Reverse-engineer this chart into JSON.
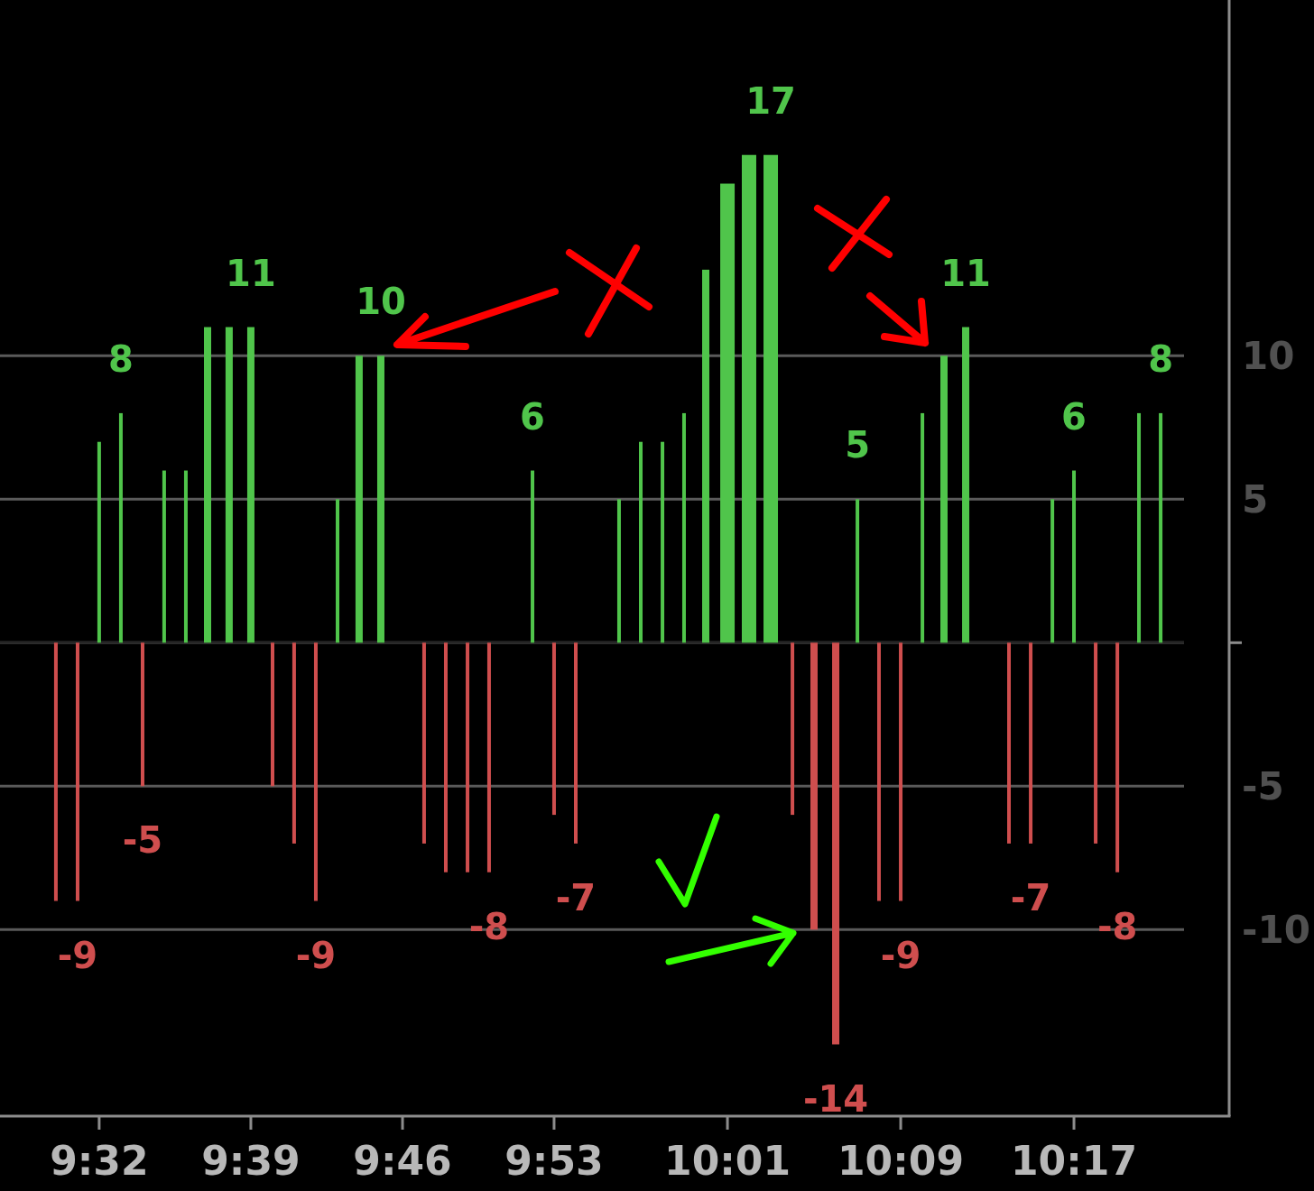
{
  "chart_data": {
    "type": "bar",
    "xlim": [
      9.457,
      10.368
    ],
    "xticks": [
      {
        "value": 9.5333,
        "label": "9:32"
      },
      {
        "value": 9.65,
        "label": "9:39"
      },
      {
        "value": 9.7667,
        "label": "9:46"
      },
      {
        "value": 9.8833,
        "label": "9:53"
      },
      {
        "value": 10.0167,
        "label": "10:01"
      },
      {
        "value": 10.15,
        "label": "10:09"
      },
      {
        "value": 10.2833,
        "label": "10:17"
      }
    ],
    "ylim": [
      -16.5,
      22.4
    ],
    "yticks": [
      -10,
      -5,
      {
        "value": 0,
        "label": null
      },
      5,
      10
    ],
    "grid": "y",
    "series": [
      {
        "color": "#50c54b",
        "x": [
          9.5333,
          9.55,
          9.5833,
          9.6,
          9.6167,
          9.6333,
          9.65,
          9.7167,
          9.7333,
          9.75,
          9.8667,
          9.9333,
          9.95,
          9.9667,
          9.9833,
          10.0,
          10.0167,
          10.0333,
          10.05,
          10.1167,
          10.1667,
          10.1833,
          10.2,
          10.2667,
          10.2833,
          10.3333,
          10.35
        ],
        "values": [
          7,
          8,
          6,
          6,
          11,
          11,
          11,
          5,
          10,
          10,
          6,
          5,
          7,
          7,
          8,
          13,
          16,
          17,
          17,
          5,
          8,
          10,
          11,
          5,
          6,
          8,
          8
        ],
        "value_labels": [
          null,
          "8",
          null,
          null,
          null,
          null,
          "11",
          null,
          null,
          "10",
          "6",
          null,
          null,
          null,
          null,
          null,
          null,
          null,
          "17",
          "5",
          null,
          null,
          "11",
          null,
          "6",
          null,
          "8"
        ]
      },
      {
        "color": "#cf4e4e",
        "x": [
          9.5,
          9.5167,
          9.5667,
          9.6667,
          9.6833,
          9.7,
          9.7833,
          9.8,
          9.8167,
          9.8333,
          9.8833,
          9.9,
          10.0667,
          10.0833,
          10.1,
          10.1333,
          10.15,
          10.2333,
          10.25,
          10.3,
          10.3167
        ],
        "values": [
          -9,
          -9,
          -5,
          -5,
          -7,
          -9,
          -7,
          -8,
          -8,
          -8,
          -6,
          -7,
          -6,
          -10,
          -14,
          -9,
          -9,
          -7,
          -7,
          -7,
          -8
        ],
        "value_labels": [
          null,
          "-9",
          "-5",
          null,
          null,
          "-9",
          null,
          null,
          null,
          "-8",
          null,
          "-7",
          null,
          null,
          "-14",
          null,
          "-9",
          null,
          "-7",
          null,
          "-8"
        ]
      }
    ]
  }
}
